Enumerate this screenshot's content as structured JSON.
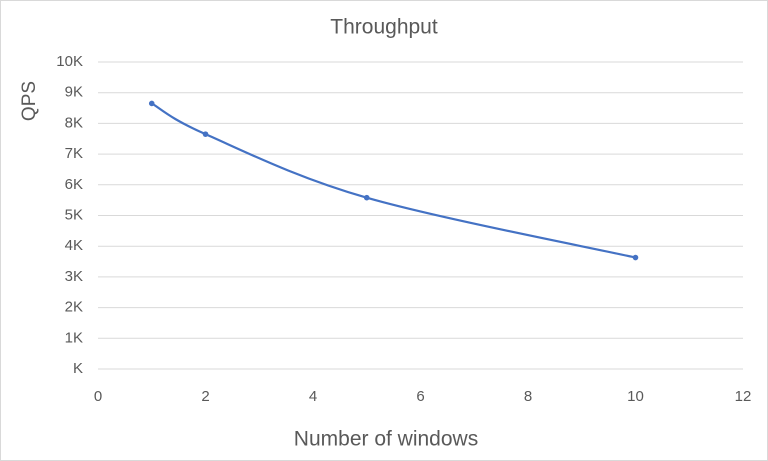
{
  "chart_data": {
    "type": "line",
    "smooth": true,
    "title": "Throughput",
    "x_label": "Number of windows",
    "y_label": "QPS",
    "x": [
      1,
      2,
      5,
      10
    ],
    "series": [
      {
        "name": "Throughput",
        "color": "#4472c4",
        "values": [
          8650,
          7650,
          5580,
          3630
        ]
      }
    ],
    "xlim": [
      0,
      12
    ],
    "xticks": [
      0,
      2,
      4,
      6,
      8,
      10,
      12
    ],
    "ylim": [
      0,
      10000
    ],
    "yticks": [
      {
        "value": 0,
        "label": "K"
      },
      {
        "value": 1000,
        "label": "1K"
      },
      {
        "value": 2000,
        "label": "2K"
      },
      {
        "value": 3000,
        "label": "3K"
      },
      {
        "value": 4000,
        "label": "4K"
      },
      {
        "value": 5000,
        "label": "5K"
      },
      {
        "value": 6000,
        "label": "6K"
      },
      {
        "value": 7000,
        "label": "7K"
      },
      {
        "value": 8000,
        "label": "8K"
      },
      {
        "value": 9000,
        "label": "9K"
      },
      {
        "value": 10000,
        "label": "10K"
      }
    ],
    "grid": true
  }
}
